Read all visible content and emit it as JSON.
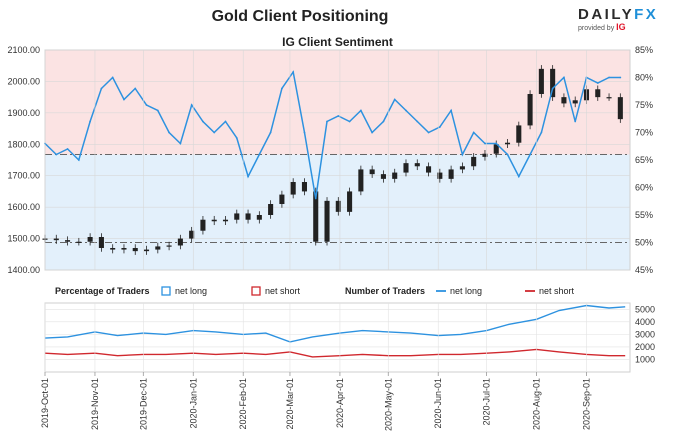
{
  "header": {
    "title": "Gold Client Positioning",
    "logo_text_a": "DAILY",
    "logo_text_b": "FX",
    "logo_sub": "provided by",
    "logo_sub_brand": "IG"
  },
  "chart_data": [
    {
      "type": "line",
      "title": "IG Client Sentiment",
      "xlabel": "",
      "ylabel_left": "",
      "ylabel_right": "",
      "left_axis": {
        "ticks": [
          "1400.00",
          "1500.00",
          "1600.00",
          "1700.00",
          "1800.00",
          "1900.00",
          "2000.00",
          "2100.00"
        ],
        "range": [
          1400,
          2100
        ]
      },
      "right_axis": {
        "ticks": [
          "45%",
          "50%",
          "55%",
          "60%",
          "65%",
          "70%",
          "75%",
          "80%",
          "85%"
        ],
        "range": [
          45,
          85
        ]
      },
      "reference_levels_pct": [
        50,
        66
      ],
      "series": [
        {
          "kind": "candles",
          "axis": "left",
          "x": [
            "2019-10-01",
            "2019-10-08",
            "2019-10-15",
            "2019-10-22",
            "2019-10-29",
            "2019-11-05",
            "2019-11-12",
            "2019-11-19",
            "2019-11-26",
            "2019-12-03",
            "2019-12-10",
            "2019-12-17",
            "2019-12-24",
            "2019-12-31",
            "2020-01-07",
            "2020-01-14",
            "2020-01-21",
            "2020-01-28",
            "2020-02-04",
            "2020-02-11",
            "2020-02-18",
            "2020-02-25",
            "2020-03-03",
            "2020-03-10",
            "2020-03-17",
            "2020-03-24",
            "2020-03-31",
            "2020-04-07",
            "2020-04-14",
            "2020-04-21",
            "2020-04-28",
            "2020-05-05",
            "2020-05-12",
            "2020-05-19",
            "2020-05-26",
            "2020-06-02",
            "2020-06-09",
            "2020-06-16",
            "2020-06-23",
            "2020-06-30",
            "2020-07-07",
            "2020-07-14",
            "2020-07-21",
            "2020-07-28",
            "2020-08-04",
            "2020-08-11",
            "2020-08-18",
            "2020-08-25",
            "2020-09-01",
            "2020-09-08",
            "2020-09-15",
            "2020-09-22"
          ],
          "y": [
            1500,
            1495,
            1490,
            1490,
            1505,
            1470,
            1465,
            1470,
            1460,
            1465,
            1475,
            1478,
            1500,
            1525,
            1560,
            1555,
            1560,
            1580,
            1560,
            1575,
            1610,
            1640,
            1680,
            1650,
            1490,
            1620,
            1585,
            1650,
            1720,
            1705,
            1690,
            1710,
            1740,
            1730,
            1710,
            1690,
            1720,
            1730,
            1760,
            1770,
            1800,
            1805,
            1860,
            1960,
            2040,
            1950,
            1930,
            1940,
            1975,
            1950,
            1950,
            1880
          ]
        },
        {
          "kind": "line",
          "name": "net long",
          "axis": "right",
          "color": "#2d92e0",
          "x": [
            "2019-10-01",
            "2019-10-08",
            "2019-10-15",
            "2019-10-22",
            "2019-10-29",
            "2019-11-05",
            "2019-11-12",
            "2019-11-19",
            "2019-11-26",
            "2019-12-03",
            "2019-12-10",
            "2019-12-17",
            "2019-12-24",
            "2019-12-31",
            "2020-01-07",
            "2020-01-14",
            "2020-01-21",
            "2020-01-28",
            "2020-02-04",
            "2020-02-11",
            "2020-02-18",
            "2020-02-25",
            "2020-03-03",
            "2020-03-10",
            "2020-03-17",
            "2020-03-24",
            "2020-03-31",
            "2020-04-07",
            "2020-04-14",
            "2020-04-21",
            "2020-04-28",
            "2020-05-05",
            "2020-05-12",
            "2020-05-19",
            "2020-05-26",
            "2020-06-02",
            "2020-06-09",
            "2020-06-16",
            "2020-06-23",
            "2020-06-30",
            "2020-07-07",
            "2020-07-14",
            "2020-07-21",
            "2020-07-28",
            "2020-08-04",
            "2020-08-11",
            "2020-08-18",
            "2020-08-25",
            "2020-09-01",
            "2020-09-08",
            "2020-09-15",
            "2020-09-22"
          ],
          "y": [
            68,
            66,
            67,
            65,
            72,
            78,
            80,
            76,
            78,
            75,
            74,
            70,
            68,
            75,
            72,
            70,
            72,
            69,
            62,
            66,
            70,
            78,
            81,
            70,
            58,
            72,
            73,
            72,
            74,
            70,
            72,
            76,
            74,
            72,
            70,
            71,
            74,
            66,
            70,
            68,
            68,
            66,
            62,
            66,
            70,
            78,
            80,
            72,
            80,
            79,
            80,
            80
          ]
        }
      ]
    },
    {
      "type": "line",
      "title": "",
      "xlabel": "",
      "ylabel": "",
      "y_ticks": [
        "1000",
        "2000",
        "3000",
        "4000",
        "5000"
      ],
      "ylim": [
        0,
        5500
      ],
      "legend_percentage": {
        "heading": "Percentage of Traders",
        "long": "net long",
        "short": "net short"
      },
      "legend_number": {
        "heading": "Number of Traders",
        "long": "net long",
        "short": "net short"
      },
      "series": [
        {
          "name": "net long",
          "color": "#2d92e0",
          "x": [
            "2019-10-01",
            "2019-10-15",
            "2019-11-01",
            "2019-11-15",
            "2019-12-01",
            "2019-12-15",
            "2020-01-01",
            "2020-01-15",
            "2020-02-01",
            "2020-02-15",
            "2020-03-01",
            "2020-03-15",
            "2020-04-01",
            "2020-04-15",
            "2020-05-01",
            "2020-05-15",
            "2020-06-01",
            "2020-06-15",
            "2020-07-01",
            "2020-07-15",
            "2020-08-01",
            "2020-08-15",
            "2020-09-01",
            "2020-09-15",
            "2020-09-25"
          ],
          "y": [
            2700,
            2800,
            3200,
            2900,
            3100,
            3000,
            3300,
            3200,
            3000,
            3100,
            2400,
            2800,
            3100,
            3300,
            3200,
            3100,
            2900,
            3000,
            3300,
            3800,
            4200,
            4900,
            5300,
            5100,
            5200
          ]
        },
        {
          "name": "net short",
          "color": "#d0282e",
          "x": [
            "2019-10-01",
            "2019-10-15",
            "2019-11-01",
            "2019-11-15",
            "2019-12-01",
            "2019-12-15",
            "2020-01-01",
            "2020-01-15",
            "2020-02-01",
            "2020-02-15",
            "2020-03-01",
            "2020-03-15",
            "2020-04-01",
            "2020-04-15",
            "2020-05-01",
            "2020-05-15",
            "2020-06-01",
            "2020-06-15",
            "2020-07-01",
            "2020-07-15",
            "2020-08-01",
            "2020-08-15",
            "2020-09-01",
            "2020-09-15",
            "2020-09-25"
          ],
          "y": [
            1500,
            1400,
            1500,
            1300,
            1400,
            1400,
            1500,
            1400,
            1500,
            1400,
            1600,
            1200,
            1300,
            1400,
            1300,
            1300,
            1400,
            1400,
            1500,
            1600,
            1800,
            1600,
            1400,
            1300,
            1300
          ]
        }
      ]
    }
  ],
  "x_axis": {
    "labels": [
      "2019-Oct-01",
      "2019-Nov-01",
      "2019-Dec-01",
      "2020-Jan-01",
      "2020-Feb-01",
      "2020-Mar-01",
      "2020-Apr-01",
      "2020-May-01",
      "2020-Jun-01",
      "2020-Jul-01",
      "2020-Aug-01",
      "2020-Sep-01"
    ],
    "dates": [
      "2019-10-01",
      "2019-11-01",
      "2019-12-01",
      "2020-01-01",
      "2020-02-01",
      "2020-03-01",
      "2020-04-01",
      "2020-05-01",
      "2020-06-01",
      "2020-07-01",
      "2020-08-01",
      "2020-09-01"
    ],
    "range": [
      "2019-10-01",
      "2020-09-28"
    ]
  },
  "colors": {
    "net_long": "#2d92e0",
    "net_short": "#d0282e",
    "above_zone": "#fbe3e3",
    "below_zone": "#e3f0fb",
    "candle": "#222222"
  }
}
